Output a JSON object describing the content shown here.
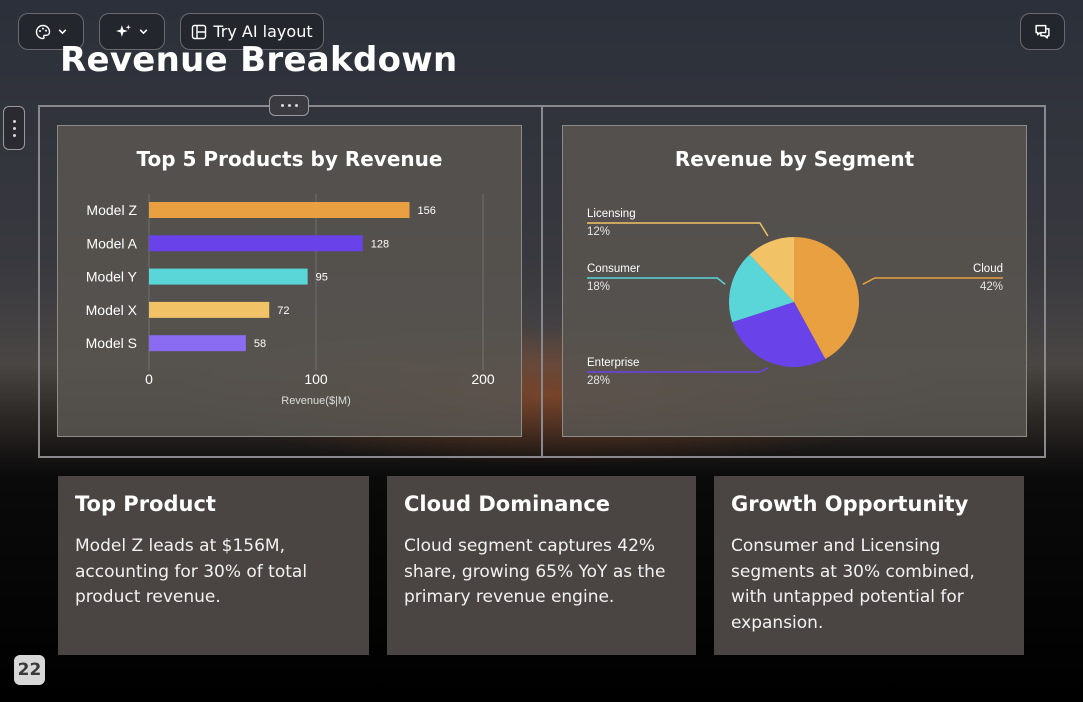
{
  "toolbar": {
    "theme_icon": "palette-icon",
    "magic_icon": "sparkles-icon",
    "layout_icon": "layout-icon",
    "try_ai_label": "Try AI layout",
    "chat_icon": "chat-icon",
    "chevron_icon": "chevron-down-icon"
  },
  "slide": {
    "title": "Revenue Breakdown",
    "page_number": "22"
  },
  "chart_data": [
    {
      "type": "bar",
      "orientation": "horizontal",
      "title": "Top 5 Products by Revenue",
      "categories": [
        "Model Z",
        "Model A",
        "Model Y",
        "Model X",
        "Model S"
      ],
      "values": [
        156,
        128,
        95,
        72,
        58
      ],
      "colors": [
        "#e8a040",
        "#6a42ea",
        "#5ad6d8",
        "#f2c266",
        "#8a6cf2"
      ],
      "xlabel": "Revenue($|M)",
      "ylabel": "",
      "xlim": [
        0,
        200
      ],
      "xticks": [
        "0",
        "100",
        "200"
      ],
      "grid": true
    },
    {
      "type": "pie",
      "title": "Revenue by Segment",
      "labels": [
        "Cloud",
        "Enterprise",
        "Consumer",
        "Licensing"
      ],
      "values": [
        42,
        28,
        18,
        12
      ],
      "value_labels": [
        "42%",
        "28%",
        "18%",
        "12%"
      ],
      "colors": [
        "#e8a040",
        "#6a42ea",
        "#5ad6d8",
        "#f2c266"
      ]
    }
  ],
  "insights": [
    {
      "title": "Top Product",
      "body": "Model Z leads at $156M, accounting for 30% of total product revenue."
    },
    {
      "title": "Cloud Dominance",
      "body": "Cloud segment captures 42% share, growing 65% YoY as the primary revenue engine."
    },
    {
      "title": "Growth Opportunity",
      "body": "Consumer and Licensing segments at 30% combined, with untapped potential for expansion."
    }
  ]
}
